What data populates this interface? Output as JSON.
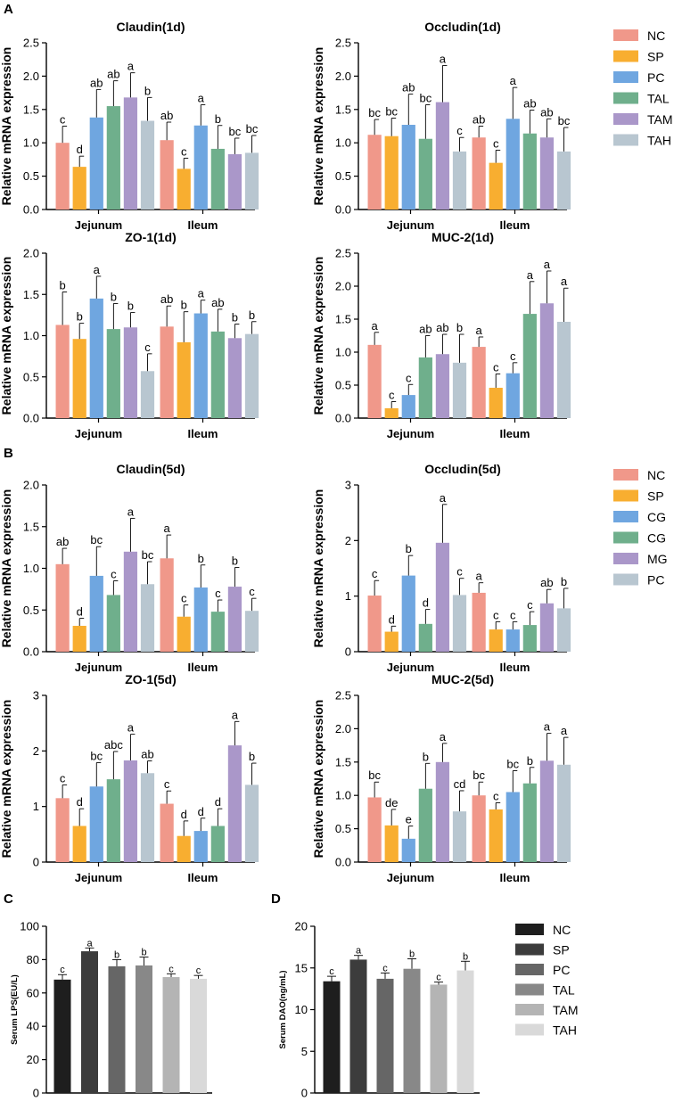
{
  "panels": [
    {
      "letter": "A"
    },
    {
      "letter": "B"
    },
    {
      "letter": "C"
    },
    {
      "letter": "D"
    }
  ],
  "legends": [
    {
      "items": [
        {
          "label": "NC",
          "color": "#F0988A"
        },
        {
          "label": "SP",
          "color": "#F8AE30"
        },
        {
          "label": "PC",
          "color": "#6FA6E0"
        },
        {
          "label": "TAL",
          "color": "#6FAF8C"
        },
        {
          "label": "TAM",
          "color": "#AA97C9"
        },
        {
          "label": "TAH",
          "color": "#B8C6D0"
        }
      ]
    },
    {
      "items": [
        {
          "label": "NC",
          "color": "#F0988A"
        },
        {
          "label": "SP",
          "color": "#F8AE30"
        },
        {
          "label": "CG",
          "color": "#6FA6E0"
        },
        {
          "label": "CG",
          "color": "#6FAF8C"
        },
        {
          "label": "MG",
          "color": "#AA97C9"
        },
        {
          "label": "PC",
          "color": "#B8C6D0"
        }
      ]
    },
    {
      "items": [
        {
          "label": "NC",
          "color": "#1E1E1E"
        },
        {
          "label": "SP",
          "color": "#3C3C3C"
        },
        {
          "label": "PC",
          "color": "#666666"
        },
        {
          "label": "TAL",
          "color": "#888888"
        },
        {
          "label": "TAM",
          "color": "#B4B4B4"
        },
        {
          "label": "TAH",
          "color": "#D9D9D9"
        }
      ]
    }
  ],
  "chart_data": [
    {
      "type": "bar",
      "id": "claudin-1d",
      "title": "Claudin(1d)",
      "ylabel": "Relative mRNA expression",
      "ylim": [
        0,
        2.5
      ],
      "yticks": [
        "0.0",
        "0.5",
        "1.0",
        "1.5",
        "2.0",
        "2.5"
      ],
      "categories": [
        "Jejunum",
        "Ileum"
      ],
      "colors": [
        "#F0988A",
        "#F8AE30",
        "#6FA6E0",
        "#6FAF8C",
        "#AA97C9",
        "#B8C6D0"
      ],
      "series": [
        {
          "name": "NC",
          "values": [
            1.0,
            1.04
          ],
          "errors": [
            0.25,
            0.27
          ],
          "letters": [
            "c",
            "ab"
          ]
        },
        {
          "name": "SP",
          "values": [
            0.64,
            0.61
          ],
          "errors": [
            0.16,
            0.16
          ],
          "letters": [
            "d",
            "c"
          ]
        },
        {
          "name": "PC",
          "values": [
            1.38,
            1.26
          ],
          "errors": [
            0.42,
            0.31
          ],
          "letters": [
            "ab",
            "a"
          ]
        },
        {
          "name": "TAL",
          "values": [
            1.55,
            0.91
          ],
          "errors": [
            0.38,
            0.35
          ],
          "letters": [
            "ab",
            "b"
          ]
        },
        {
          "name": "TAM",
          "values": [
            1.68,
            0.83
          ],
          "errors": [
            0.37,
            0.24
          ],
          "letters": [
            "a",
            "bc"
          ]
        },
        {
          "name": "TAH",
          "values": [
            1.33,
            0.85
          ],
          "errors": [
            0.35,
            0.26
          ],
          "letters": [
            "b",
            "bc"
          ]
        }
      ]
    },
    {
      "type": "bar",
      "id": "occludin-1d",
      "title": "Occludin(1d)",
      "ylabel": "Relative mRNA expression",
      "ylim": [
        0,
        2.5
      ],
      "yticks": [
        "0.0",
        "0.5",
        "1.0",
        "1.5",
        "2.0",
        "2.5"
      ],
      "categories": [
        "Jejunum",
        "Ileum"
      ],
      "colors": [
        "#F0988A",
        "#F8AE30",
        "#6FA6E0",
        "#6FAF8C",
        "#AA97C9",
        "#B8C6D0"
      ],
      "series": [
        {
          "name": "NC",
          "values": [
            1.12,
            1.08
          ],
          "errors": [
            0.23,
            0.17
          ],
          "letters": [
            "bc",
            "ab"
          ]
        },
        {
          "name": "SP",
          "values": [
            1.1,
            0.7
          ],
          "errors": [
            0.27,
            0.19
          ],
          "letters": [
            "bc",
            "c"
          ]
        },
        {
          "name": "PC",
          "values": [
            1.27,
            1.36
          ],
          "errors": [
            0.46,
            0.47
          ],
          "letters": [
            "ab",
            "a"
          ]
        },
        {
          "name": "TAL",
          "values": [
            1.06,
            1.14
          ],
          "errors": [
            0.51,
            0.35
          ],
          "letters": [
            "bc",
            "ab"
          ]
        },
        {
          "name": "TAM",
          "values": [
            1.61,
            1.08
          ],
          "errors": [
            0.55,
            0.28
          ],
          "letters": [
            "a",
            "ab"
          ]
        },
        {
          "name": "TAH",
          "values": [
            0.87,
            0.87
          ],
          "errors": [
            0.21,
            0.36
          ],
          "letters": [
            "c",
            "bc"
          ]
        }
      ]
    },
    {
      "type": "bar",
      "id": "zo1-1d",
      "title": "ZO-1(1d)",
      "ylabel": "Relative mRNA expression",
      "ylim": [
        0,
        2.0
      ],
      "yticks": [
        "0.0",
        "0.5",
        "1.0",
        "1.5",
        "2.0"
      ],
      "categories": [
        "Jejunum",
        "Ileum"
      ],
      "colors": [
        "#F0988A",
        "#F8AE30",
        "#6FA6E0",
        "#6FAF8C",
        "#AA97C9",
        "#B8C6D0"
      ],
      "series": [
        {
          "name": "NC",
          "values": [
            1.13,
            1.11
          ],
          "errors": [
            0.4,
            0.25
          ],
          "letters": [
            "b",
            "ab"
          ]
        },
        {
          "name": "SP",
          "values": [
            0.96,
            0.92
          ],
          "errors": [
            0.19,
            0.37
          ],
          "letters": [
            "b",
            "b"
          ]
        },
        {
          "name": "PC",
          "values": [
            1.45,
            1.27
          ],
          "errors": [
            0.27,
            0.16
          ],
          "letters": [
            "a",
            "a"
          ]
        },
        {
          "name": "TAL",
          "values": [
            1.08,
            1.05
          ],
          "errors": [
            0.31,
            0.27
          ],
          "letters": [
            "b",
            "ab"
          ]
        },
        {
          "name": "TAM",
          "values": [
            1.1,
            0.97
          ],
          "errors": [
            0.18,
            0.17
          ],
          "letters": [
            "b",
            "b"
          ]
        },
        {
          "name": "TAH",
          "values": [
            0.57,
            1.02
          ],
          "errors": [
            0.21,
            0.15
          ],
          "letters": [
            "c",
            "b"
          ]
        }
      ]
    },
    {
      "type": "bar",
      "id": "muc2-1d",
      "title": "MUC-2(1d)",
      "ylabel": "Relative mRNA expression",
      "ylim": [
        0,
        2.5
      ],
      "yticks": [
        "0.0",
        "0.5",
        "1.0",
        "1.5",
        "2.0",
        "2.5"
      ],
      "categories": [
        "Jejunum",
        "Ileum"
      ],
      "colors": [
        "#F0988A",
        "#F8AE30",
        "#6FA6E0",
        "#6FAF8C",
        "#AA97C9",
        "#B8C6D0"
      ],
      "series": [
        {
          "name": "NC",
          "values": [
            1.11,
            1.08
          ],
          "errors": [
            0.19,
            0.15
          ],
          "letters": [
            "a",
            "a"
          ]
        },
        {
          "name": "SP",
          "values": [
            0.15,
            0.46
          ],
          "errors": [
            0.1,
            0.21
          ],
          "letters": [
            "c",
            "c"
          ]
        },
        {
          "name": "PC",
          "values": [
            0.35,
            0.68
          ],
          "errors": [
            0.16,
            0.16
          ],
          "letters": [
            "c",
            "c"
          ]
        },
        {
          "name": "TAL",
          "values": [
            0.92,
            1.58
          ],
          "errors": [
            0.33,
            0.49
          ],
          "letters": [
            "ab",
            "a"
          ]
        },
        {
          "name": "TAM",
          "values": [
            0.97,
            1.74
          ],
          "errors": [
            0.3,
            0.49
          ],
          "letters": [
            "ab",
            "a"
          ]
        },
        {
          "name": "TAH",
          "values": [
            0.84,
            1.46
          ],
          "errors": [
            0.43,
            0.51
          ],
          "letters": [
            "b",
            "a"
          ]
        }
      ]
    },
    {
      "type": "bar",
      "id": "claudin-5d",
      "title": "Claudin(5d)",
      "ylabel": "Relative mRNA expression",
      "ylim": [
        0,
        2.0
      ],
      "yticks": [
        "0.0",
        "0.5",
        "1.0",
        "1.5",
        "2.0"
      ],
      "categories": [
        "Jejunum",
        "Ileum"
      ],
      "colors": [
        "#F0988A",
        "#F8AE30",
        "#6FA6E0",
        "#6FAF8C",
        "#AA97C9",
        "#B8C6D0"
      ],
      "series": [
        {
          "name": "NC",
          "values": [
            1.05,
            1.12
          ],
          "errors": [
            0.19,
            0.28
          ],
          "letters": [
            "ab",
            "a"
          ]
        },
        {
          "name": "SP",
          "values": [
            0.31,
            0.42
          ],
          "errors": [
            0.09,
            0.14
          ],
          "letters": [
            "d",
            "c"
          ]
        },
        {
          "name": "CG",
          "values": [
            0.91,
            0.77
          ],
          "errors": [
            0.35,
            0.27
          ],
          "letters": [
            "bc",
            "b"
          ]
        },
        {
          "name": "CG",
          "values": [
            0.68,
            0.48
          ],
          "errors": [
            0.17,
            0.14
          ],
          "letters": [
            "c",
            "c"
          ]
        },
        {
          "name": "MG",
          "values": [
            1.2,
            0.78
          ],
          "errors": [
            0.4,
            0.23
          ],
          "letters": [
            "a",
            "b"
          ]
        },
        {
          "name": "PC",
          "values": [
            0.81,
            0.49
          ],
          "errors": [
            0.27,
            0.15
          ],
          "letters": [
            "bc",
            "c"
          ]
        }
      ]
    },
    {
      "type": "bar",
      "id": "occludin-5d",
      "title": "Occludin(5d)",
      "ylabel": "Relative mRNA expression",
      "ylim": [
        0,
        3
      ],
      "yticks": [
        "0",
        "1",
        "2",
        "3"
      ],
      "categories": [
        "Jejunum",
        "Ileum"
      ],
      "colors": [
        "#F0988A",
        "#F8AE30",
        "#6FA6E0",
        "#6FAF8C",
        "#AA97C9",
        "#B8C6D0"
      ],
      "series": [
        {
          "name": "NC",
          "values": [
            1.01,
            1.06
          ],
          "errors": [
            0.27,
            0.18
          ],
          "letters": [
            "c",
            "a"
          ]
        },
        {
          "name": "SP",
          "values": [
            0.36,
            0.4
          ],
          "errors": [
            0.1,
            0.14
          ],
          "letters": [
            "d",
            "c"
          ]
        },
        {
          "name": "CG",
          "values": [
            1.37,
            0.4
          ],
          "errors": [
            0.36,
            0.14
          ],
          "letters": [
            "b",
            "c"
          ]
        },
        {
          "name": "CG",
          "values": [
            0.5,
            0.48
          ],
          "errors": [
            0.26,
            0.24
          ],
          "letters": [
            "d",
            "c"
          ]
        },
        {
          "name": "MG",
          "values": [
            1.96,
            0.87
          ],
          "errors": [
            0.69,
            0.25
          ],
          "letters": [
            "a",
            "ab"
          ]
        },
        {
          "name": "PC",
          "values": [
            1.02,
            0.78
          ],
          "errors": [
            0.3,
            0.36
          ],
          "letters": [
            "c",
            "b"
          ]
        }
      ]
    },
    {
      "type": "bar",
      "id": "zo1-5d",
      "title": "ZO-1(5d)",
      "ylabel": "Relative mRNA expression",
      "ylim": [
        0,
        3
      ],
      "yticks": [
        "0",
        "1",
        "2",
        "3"
      ],
      "categories": [
        "Jejunum",
        "Ileum"
      ],
      "colors": [
        "#F0988A",
        "#F8AE30",
        "#6FA6E0",
        "#6FAF8C",
        "#AA97C9",
        "#B8C6D0"
      ],
      "series": [
        {
          "name": "NC",
          "values": [
            1.15,
            1.05
          ],
          "errors": [
            0.24,
            0.23
          ],
          "letters": [
            "c",
            "c"
          ]
        },
        {
          "name": "SP",
          "values": [
            0.65,
            0.47
          ],
          "errors": [
            0.31,
            0.27
          ],
          "letters": [
            "d",
            "d"
          ]
        },
        {
          "name": "CG",
          "values": [
            1.36,
            0.56
          ],
          "errors": [
            0.43,
            0.23
          ],
          "letters": [
            "bc",
            "d"
          ]
        },
        {
          "name": "CG",
          "values": [
            1.49,
            0.65
          ],
          "errors": [
            0.5,
            0.31
          ],
          "letters": [
            "abc",
            "d"
          ]
        },
        {
          "name": "MG",
          "values": [
            1.83,
            2.1
          ],
          "errors": [
            0.47,
            0.43
          ],
          "letters": [
            "a",
            "a"
          ]
        },
        {
          "name": "PC",
          "values": [
            1.6,
            1.39
          ],
          "errors": [
            0.22,
            0.39
          ],
          "letters": [
            "ab",
            "b"
          ]
        }
      ]
    },
    {
      "type": "bar",
      "id": "muc2-5d",
      "title": "MUC-2(5d)",
      "ylabel": "Relative mRNA expression",
      "ylim": [
        0,
        2.5
      ],
      "yticks": [
        "0.0",
        "0.5",
        "1.0",
        "1.5",
        "2.0",
        "2.5"
      ],
      "categories": [
        "Jejunum",
        "Ileum"
      ],
      "colors": [
        "#F0988A",
        "#F8AE30",
        "#6FA6E0",
        "#6FAF8C",
        "#AA97C9",
        "#B8C6D0"
      ],
      "series": [
        {
          "name": "NC",
          "values": [
            0.97,
            1.0
          ],
          "errors": [
            0.23,
            0.2
          ],
          "letters": [
            "bc",
            "bc"
          ]
        },
        {
          "name": "SP",
          "values": [
            0.55,
            0.79
          ],
          "errors": [
            0.24,
            0.1
          ],
          "letters": [
            "de",
            "c"
          ]
        },
        {
          "name": "CG",
          "values": [
            0.35,
            1.05
          ],
          "errors": [
            0.19,
            0.32
          ],
          "letters": [
            "e",
            "bc"
          ]
        },
        {
          "name": "CG",
          "values": [
            1.1,
            1.18
          ],
          "errors": [
            0.38,
            0.24
          ],
          "letters": [
            "b",
            "b"
          ]
        },
        {
          "name": "MG",
          "values": [
            1.5,
            1.52
          ],
          "errors": [
            0.28,
            0.41
          ],
          "letters": [
            "a",
            "a"
          ]
        },
        {
          "name": "PC",
          "values": [
            0.76,
            1.46
          ],
          "errors": [
            0.31,
            0.41
          ],
          "letters": [
            "cd",
            "a"
          ]
        }
      ]
    },
    {
      "type": "bar",
      "id": "serum-lps",
      "title": "",
      "ylabel": "Serum LPS(EU/L)",
      "ylim": [
        0,
        100
      ],
      "yticks": [
        "0",
        "20",
        "40",
        "60",
        "80",
        "100"
      ],
      "categories": [
        "NC",
        "SP",
        "PC",
        "TAL",
        "TAM",
        "TAH"
      ],
      "colors": [
        "#1E1E1E",
        "#3C3C3C",
        "#666666",
        "#888888",
        "#B4B4B4",
        "#D9D9D9"
      ],
      "values": [
        68.0,
        85.0,
        76.0,
        76.5,
        69.5,
        68.5
      ],
      "errors": [
        3.0,
        2.0,
        4.0,
        5.0,
        2.0,
        2.0
      ],
      "letters": [
        "c",
        "a",
        "b",
        "b",
        "c",
        "c"
      ]
    },
    {
      "type": "bar",
      "id": "serum-dao",
      "title": "",
      "ylabel": "Serum DAO(ng/mL)",
      "ylim": [
        0,
        20
      ],
      "yticks": [
        "0",
        "5",
        "10",
        "15",
        "20"
      ],
      "categories": [
        "NC",
        "SP",
        "PC",
        "TAL",
        "TAM",
        "TAH"
      ],
      "colors": [
        "#1E1E1E",
        "#3C3C3C",
        "#666666",
        "#888888",
        "#B4B4B4",
        "#D9D9D9"
      ],
      "values": [
        13.4,
        16.0,
        13.7,
        14.9,
        13.0,
        14.7
      ],
      "errors": [
        0.6,
        0.5,
        0.7,
        1.2,
        0.3,
        1.1
      ],
      "letters": [
        "c",
        "a",
        "c",
        "b",
        "c",
        "b"
      ]
    }
  ]
}
